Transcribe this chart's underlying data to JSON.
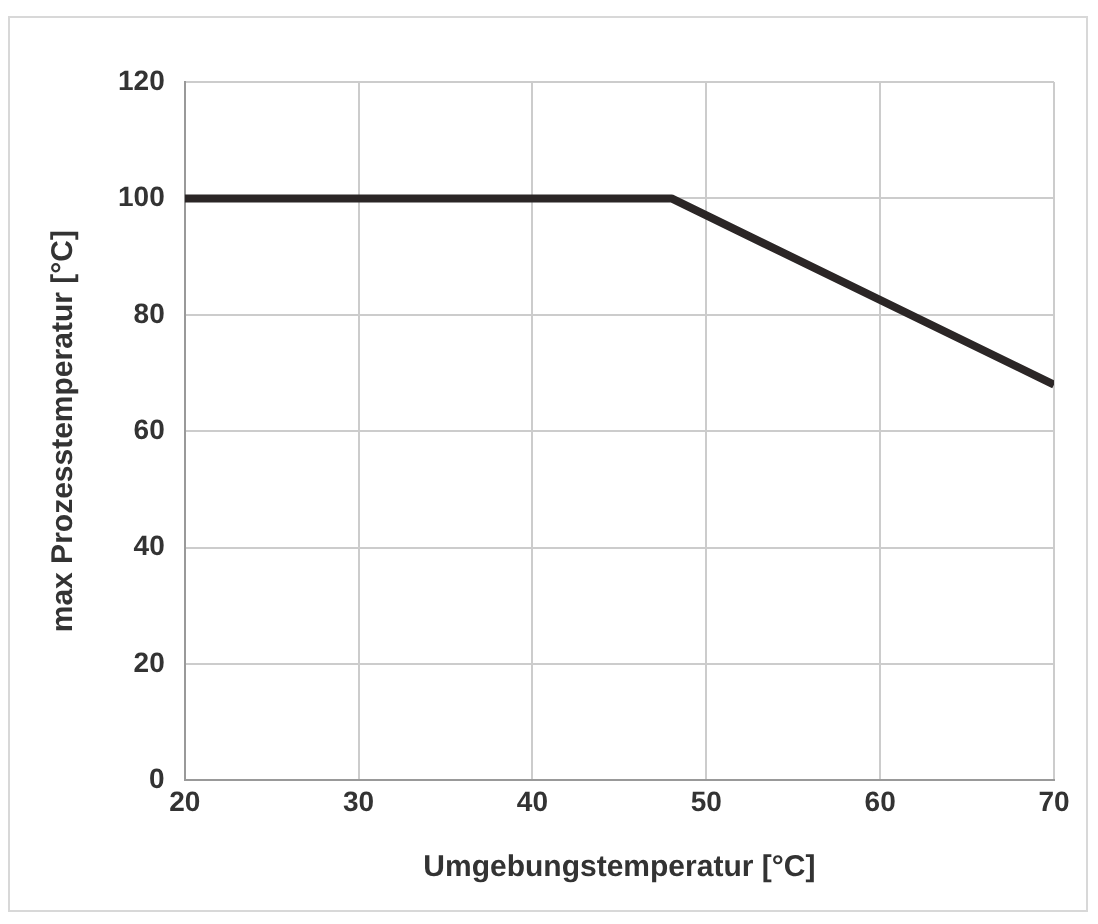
{
  "chart_data": {
    "type": "line",
    "xlabel": "Umgebungstemperatur [°C]",
    "ylabel": "max Prozesstemperatur [°C]",
    "x": [
      20,
      48,
      70
    ],
    "series": [
      {
        "color": "#2b2626",
        "values": [
          100,
          100,
          68
        ]
      }
    ],
    "xlim": [
      20,
      70
    ],
    "xticks": [
      20,
      30,
      40,
      50,
      60,
      70
    ],
    "ylim": [
      0,
      120
    ],
    "yticks": [
      0,
      20,
      40,
      60,
      80,
      100,
      120
    ],
    "grid": true,
    "legend": false,
    "marker": "none",
    "line_style": "solid"
  }
}
